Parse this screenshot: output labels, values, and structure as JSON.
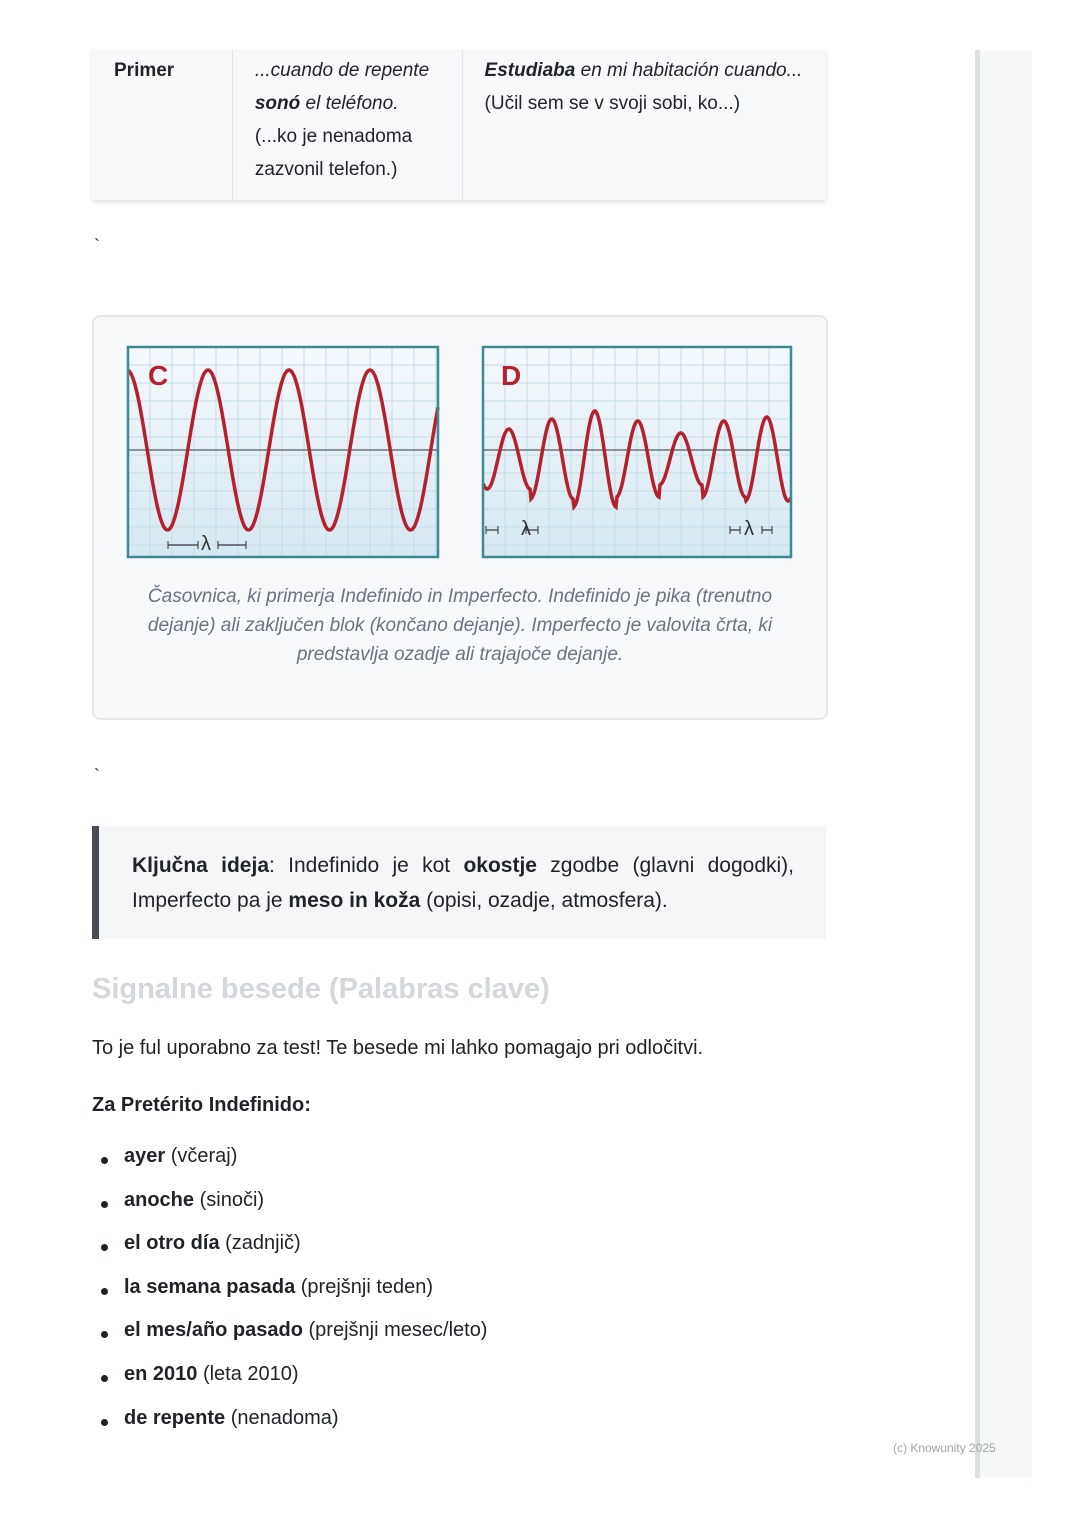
{
  "table": {
    "row_label": "Primer",
    "col1": {
      "pre": "...cuando de repente ",
      "bold": "sonó",
      "post": " el teléfono.",
      "translation": "(...ko je nenadoma zazvonil telefon.)"
    },
    "col2": {
      "bold": "Estudiaba",
      "italic": " en mi habitación cuando...",
      "translation": " (Učil sem se v svoji sobi, ko...)"
    }
  },
  "separator": "`",
  "figure": {
    "panel_c_label": "C",
    "panel_d_label": "D",
    "lambda": "λ",
    "caption": "Časovnica, ki primerja Indefinido in Imperfecto. Indefinido je pika (trenutno dejanje) ali zaključen blok (končano dejanje). Imperfecto je valovita črta, ki predstavlja ozadje ali trajajoče dejanje.",
    "wave_color": "#b5202e",
    "frame_color": "#3d8a94"
  },
  "callout": {
    "label": "Ključna ideja",
    "t1": ": Indefinido je kot ",
    "b1": "okostje",
    "t2": " zgodbe (glavni dogodki), Imperfecto pa je ",
    "b2": "meso in koža",
    "t3": " (opisi, ozadje, atmosfera)."
  },
  "section": {
    "heading": "Signalne besede (Palabras clave)",
    "intro": "To je ful uporabno za test! Te besede mi lahko pomagajo pri odločitvi.",
    "subheading": "Za Pretérito Indefinido:",
    "items": [
      {
        "term": "ayer",
        "gloss": " (včeraj)"
      },
      {
        "term": "anoche",
        "gloss": " (sinoči)"
      },
      {
        "term": "el otro día",
        "gloss": " (zadnjič)"
      },
      {
        "term": "la semana pasada",
        "gloss": " (prejšnji teden)"
      },
      {
        "term": "el mes/año pasado",
        "gloss": " (prejšnji mesec/leto)"
      },
      {
        "term": "en 2010",
        "gloss": " (leta 2010)"
      },
      {
        "term": "de repente",
        "gloss": " (nenadoma)"
      }
    ]
  },
  "footer": "(c) Knowunity 2025"
}
